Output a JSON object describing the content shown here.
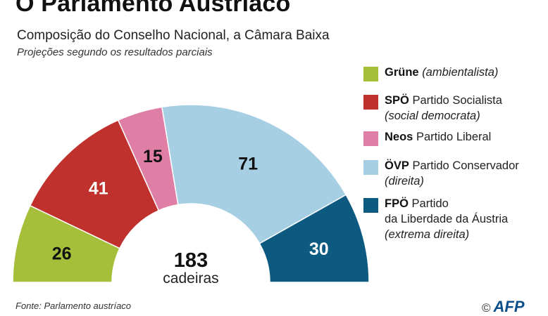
{
  "title": "O Parlamento Austríaco",
  "subtitle": "Composição do Conselho Nacional, a Câmara Baixa",
  "note": "Projeções segundo os resultados parciais",
  "source": "Fonte: Parlamento austríaco",
  "logo": {
    "copyright": "©",
    "text": "AFP"
  },
  "center": {
    "total": "183",
    "label": "cadeiras"
  },
  "chart_data": {
    "type": "pie",
    "variant": "semicircle-parliament",
    "title": "O Parlamento Austríaco",
    "subtitle": "Composição do Conselho Nacional, a Câmara Baixa",
    "total": 183,
    "series": [
      {
        "party": "Grüne",
        "seats": 26,
        "color": "#a5bf3a"
      },
      {
        "party": "SPÖ",
        "seats": 41,
        "color": "#c0302d"
      },
      {
        "party": "Neos",
        "seats": 15,
        "color": "#e07fa5"
      },
      {
        "party": "ÖVP",
        "seats": 71,
        "color": "#a6cfe4"
      },
      {
        "party": "FPÖ",
        "seats": 30,
        "color": "#0d5a80"
      }
    ],
    "legend_position": "right"
  },
  "legend": [
    {
      "party": "Grüne",
      "line1": "",
      "line2": "",
      "italic1": "(ambientalista)",
      "italic2": "",
      "color": "#a5bf3a"
    },
    {
      "party": "SPÖ",
      "line1": "Partido Socialista",
      "line2": "",
      "italic1": "",
      "italic2": "(social democrata)",
      "color": "#c0302d"
    },
    {
      "party": "Neos",
      "line1": "Partido Liberal",
      "line2": "",
      "italic1": "",
      "italic2": "",
      "color": "#e07fa5"
    },
    {
      "party": "ÖVP",
      "line1": "Partido Conservador",
      "line2": "",
      "italic1": "",
      "italic2": "(direita)",
      "color": "#a6cfe4"
    },
    {
      "party": "FPÖ",
      "line1": "Partido",
      "line2": "da Liberdade da Áustria",
      "italic1": "",
      "italic2": "(extrema direita)",
      "color": "#0d5a80"
    }
  ]
}
